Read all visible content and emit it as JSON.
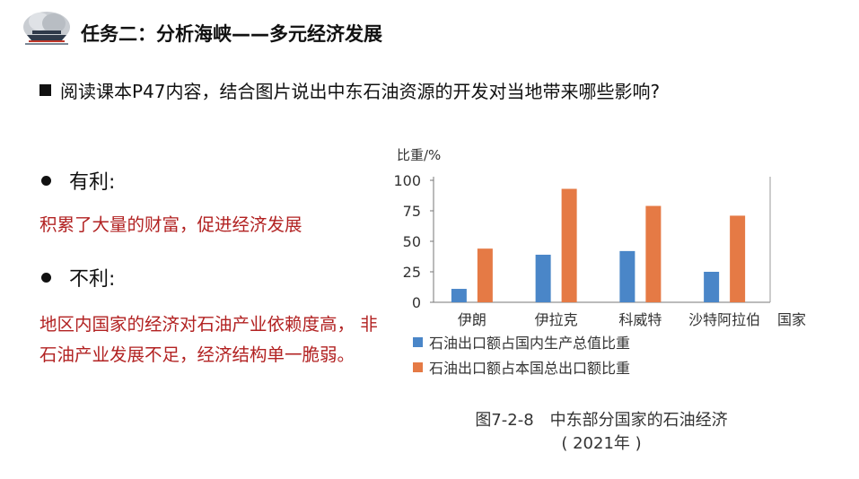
{
  "header": {
    "title": "任务二：分析海峡——多元经济发展",
    "logo_icon": "ship-icon"
  },
  "question": {
    "text": "阅读课本P47内容，结合图片说出中东石油资源的开发对当地带来哪些影响?"
  },
  "pros": {
    "heading": "有利:",
    "text": "积累了大量的财富，促进经济发展"
  },
  "cons": {
    "heading": "不利:",
    "text": "地区内国家的经济对石油产业依赖度高， 非石油产业发展不足，经济结构单一脆弱。"
  },
  "colors": {
    "answer": "#b22222",
    "series1": "#4a86c8",
    "series2": "#e57a45"
  },
  "chart_data": {
    "type": "bar",
    "ylabel": "比重/%",
    "xlabel": "国家",
    "ylim": [
      0,
      100
    ],
    "yticks": [
      0,
      25,
      50,
      75,
      100
    ],
    "categories": [
      "伊朗",
      "伊拉克",
      "科威特",
      "沙特阿拉伯"
    ],
    "series": [
      {
        "name": "石油出口额占国内生产总值比重",
        "values": [
          11,
          39,
          42,
          25
        ]
      },
      {
        "name": "石油出口额占本国总出口额比重",
        "values": [
          44,
          93,
          79,
          71
        ]
      }
    ],
    "grid": false,
    "legend": "bottom"
  },
  "caption": {
    "line1": "图7-2-8　中东部分国家的石油经济",
    "line2": "( 2021年 )"
  }
}
